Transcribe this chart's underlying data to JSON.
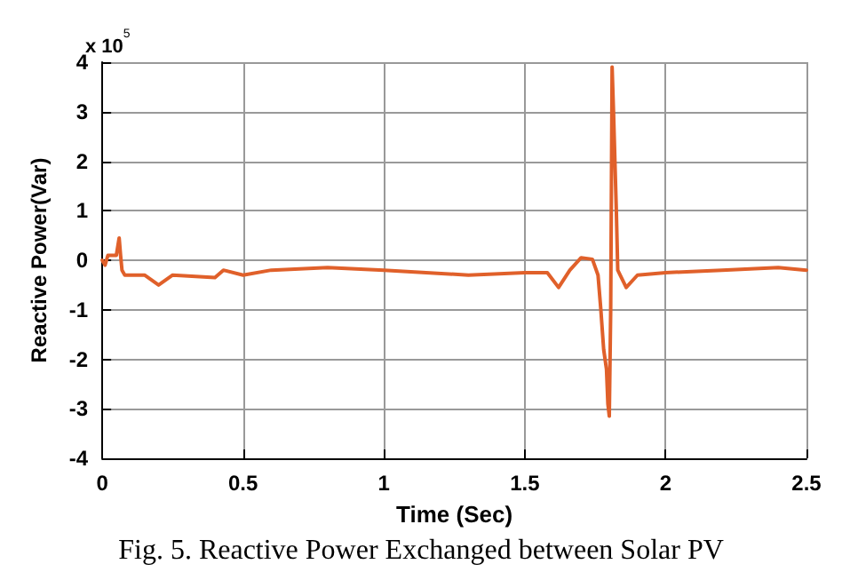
{
  "chart_data": {
    "type": "line",
    "xlabel": "Time (Sec)",
    "ylabel": "Reactive Power(Var)",
    "annotations": [
      "x 10$^{5}$",
      "Fig. 5. Reactive Power Exchanged between Solar PV"
    ],
    "x": [
      0,
      0.01,
      0.02,
      0.05,
      0.06,
      0.065,
      0.07,
      0.08,
      0.15,
      0.2,
      0.25,
      0.4,
      0.43,
      0.5,
      0.6,
      0.8,
      1.0,
      1.3,
      1.5,
      1.58,
      1.62,
      1.66,
      1.7,
      1.74,
      1.76,
      1.77,
      1.78,
      1.79,
      1.795,
      1.8,
      1.805,
      1.81,
      1.815,
      1.82,
      1.825,
      1.83,
      1.86,
      1.9,
      2.0,
      2.2,
      2.4,
      2.5
    ],
    "series": [
      {
        "color": "#e0602a",
        "values": [
          0,
          -0.1,
          0.1,
          0.1,
          0.45,
          0.1,
          -0.2,
          -0.3,
          -0.3,
          -0.5,
          -0.3,
          -0.35,
          -0.2,
          -0.3,
          -0.2,
          -0.15,
          -0.2,
          -0.3,
          -0.25,
          -0.25,
          -0.55,
          -0.2,
          0.05,
          0.02,
          -0.3,
          -1.0,
          -1.8,
          -2.2,
          -2.9,
          -3.15,
          -1.0,
          3.9,
          3.0,
          2.0,
          1.0,
          -0.2,
          -0.55,
          -0.3,
          -0.25,
          -0.2,
          -0.15,
          -0.2
        ]
      }
    ],
    "xlim": [
      0,
      2.5
    ],
    "xticks": [
      0,
      0.5,
      1,
      1.5,
      2,
      2.5
    ],
    "ylim": [
      -4,
      4
    ],
    "yticks": [
      -4,
      -3,
      -2,
      -1,
      0,
      1,
      2,
      3,
      4
    ],
    "grid": true,
    "marker": "none",
    "line_style": "solid"
  }
}
